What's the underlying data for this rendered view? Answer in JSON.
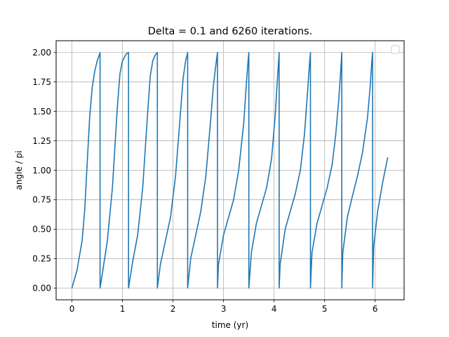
{
  "chart_data": {
    "type": "line",
    "title": "Delta = 0.1 and 6260 iterations.",
    "xlabel": "time (yr)",
    "ylabel": "angle / pi",
    "xlim": [
      -0.313,
      6.573
    ],
    "ylim": [
      -0.1,
      2.1
    ],
    "xticks": [
      0,
      1,
      2,
      3,
      4,
      5,
      6
    ],
    "xtick_labels": [
      "0",
      "1",
      "2",
      "3",
      "4",
      "5",
      "6"
    ],
    "yticks": [
      0,
      0.25,
      0.5,
      0.75,
      1,
      1.25,
      1.5,
      1.75,
      2
    ],
    "ytick_labels": [
      "0.00",
      "0.25",
      "0.50",
      "0.75",
      "1.00",
      "1.25",
      "1.50",
      "1.75",
      "2.00"
    ],
    "grid": true,
    "legend": {
      "placement": "top-right",
      "entries": []
    },
    "colors": {
      "line": "#1f77b4",
      "grid": "#b0b0b0"
    },
    "series": [
      {
        "x": [
          0,
          0.1,
          0.2,
          0.25,
          0.3,
          0.35,
          0.4,
          0.45,
          0.5,
          0.55,
          0.556,
          0.556,
          0.6,
          0.7,
          0.8,
          0.9,
          0.95,
          1.0,
          1.05,
          1.08,
          1.12,
          1.12,
          1.2,
          1.3,
          1.4,
          1.5,
          1.55,
          1.6,
          1.65,
          1.69,
          1.69,
          1.75,
          1.85,
          1.95,
          2.05,
          2.15,
          2.2,
          2.25,
          2.28,
          2.29,
          2.29,
          2.35,
          2.45,
          2.55,
          2.65,
          2.75,
          2.8,
          2.85,
          2.88,
          2.88,
          2.9,
          3.0,
          3.1,
          3.2,
          3.3,
          3.4,
          3.45,
          3.48,
          3.5,
          3.5,
          3.55,
          3.65,
          3.75,
          3.85,
          3.95,
          4.02,
          4.07,
          4.1,
          4.1,
          4.12,
          4.22,
          4.32,
          4.42,
          4.52,
          4.6,
          4.66,
          4.7,
          4.72,
          4.72,
          4.75,
          4.85,
          4.95,
          5.05,
          5.15,
          5.22,
          5.28,
          5.32,
          5.34,
          5.34,
          5.36,
          5.45,
          5.55,
          5.65,
          5.75,
          5.85,
          5.9,
          5.93,
          5.95,
          5.95,
          5.97,
          6.05,
          6.15,
          6.25
        ],
        "y": [
          0,
          0.15,
          0.4,
          0.65,
          1.05,
          1.45,
          1.7,
          1.84,
          1.93,
          1.99,
          2.0,
          0,
          0.12,
          0.4,
          0.85,
          1.55,
          1.82,
          1.93,
          1.97,
          1.99,
          2.0,
          0,
          0.22,
          0.45,
          0.85,
          1.5,
          1.8,
          1.93,
          1.98,
          2.0,
          0,
          0.2,
          0.4,
          0.6,
          0.95,
          1.5,
          1.78,
          1.93,
          1.98,
          2.0,
          0,
          0.25,
          0.45,
          0.65,
          0.95,
          1.45,
          1.72,
          1.9,
          2.0,
          0,
          0.2,
          0.45,
          0.6,
          0.75,
          1.0,
          1.4,
          1.72,
          1.9,
          2.0,
          0,
          0.3,
          0.55,
          0.7,
          0.85,
          1.1,
          1.45,
          1.8,
          2.0,
          0,
          0.2,
          0.5,
          0.65,
          0.8,
          1.0,
          1.3,
          1.65,
          1.9,
          2.0,
          0,
          0.3,
          0.55,
          0.7,
          0.85,
          1.05,
          1.3,
          1.6,
          1.85,
          2.0,
          0,
          0.3,
          0.6,
          0.78,
          0.95,
          1.15,
          1.45,
          1.7,
          1.9,
          2.0,
          0,
          0.35,
          0.65,
          0.9,
          1.11
        ]
      }
    ]
  }
}
